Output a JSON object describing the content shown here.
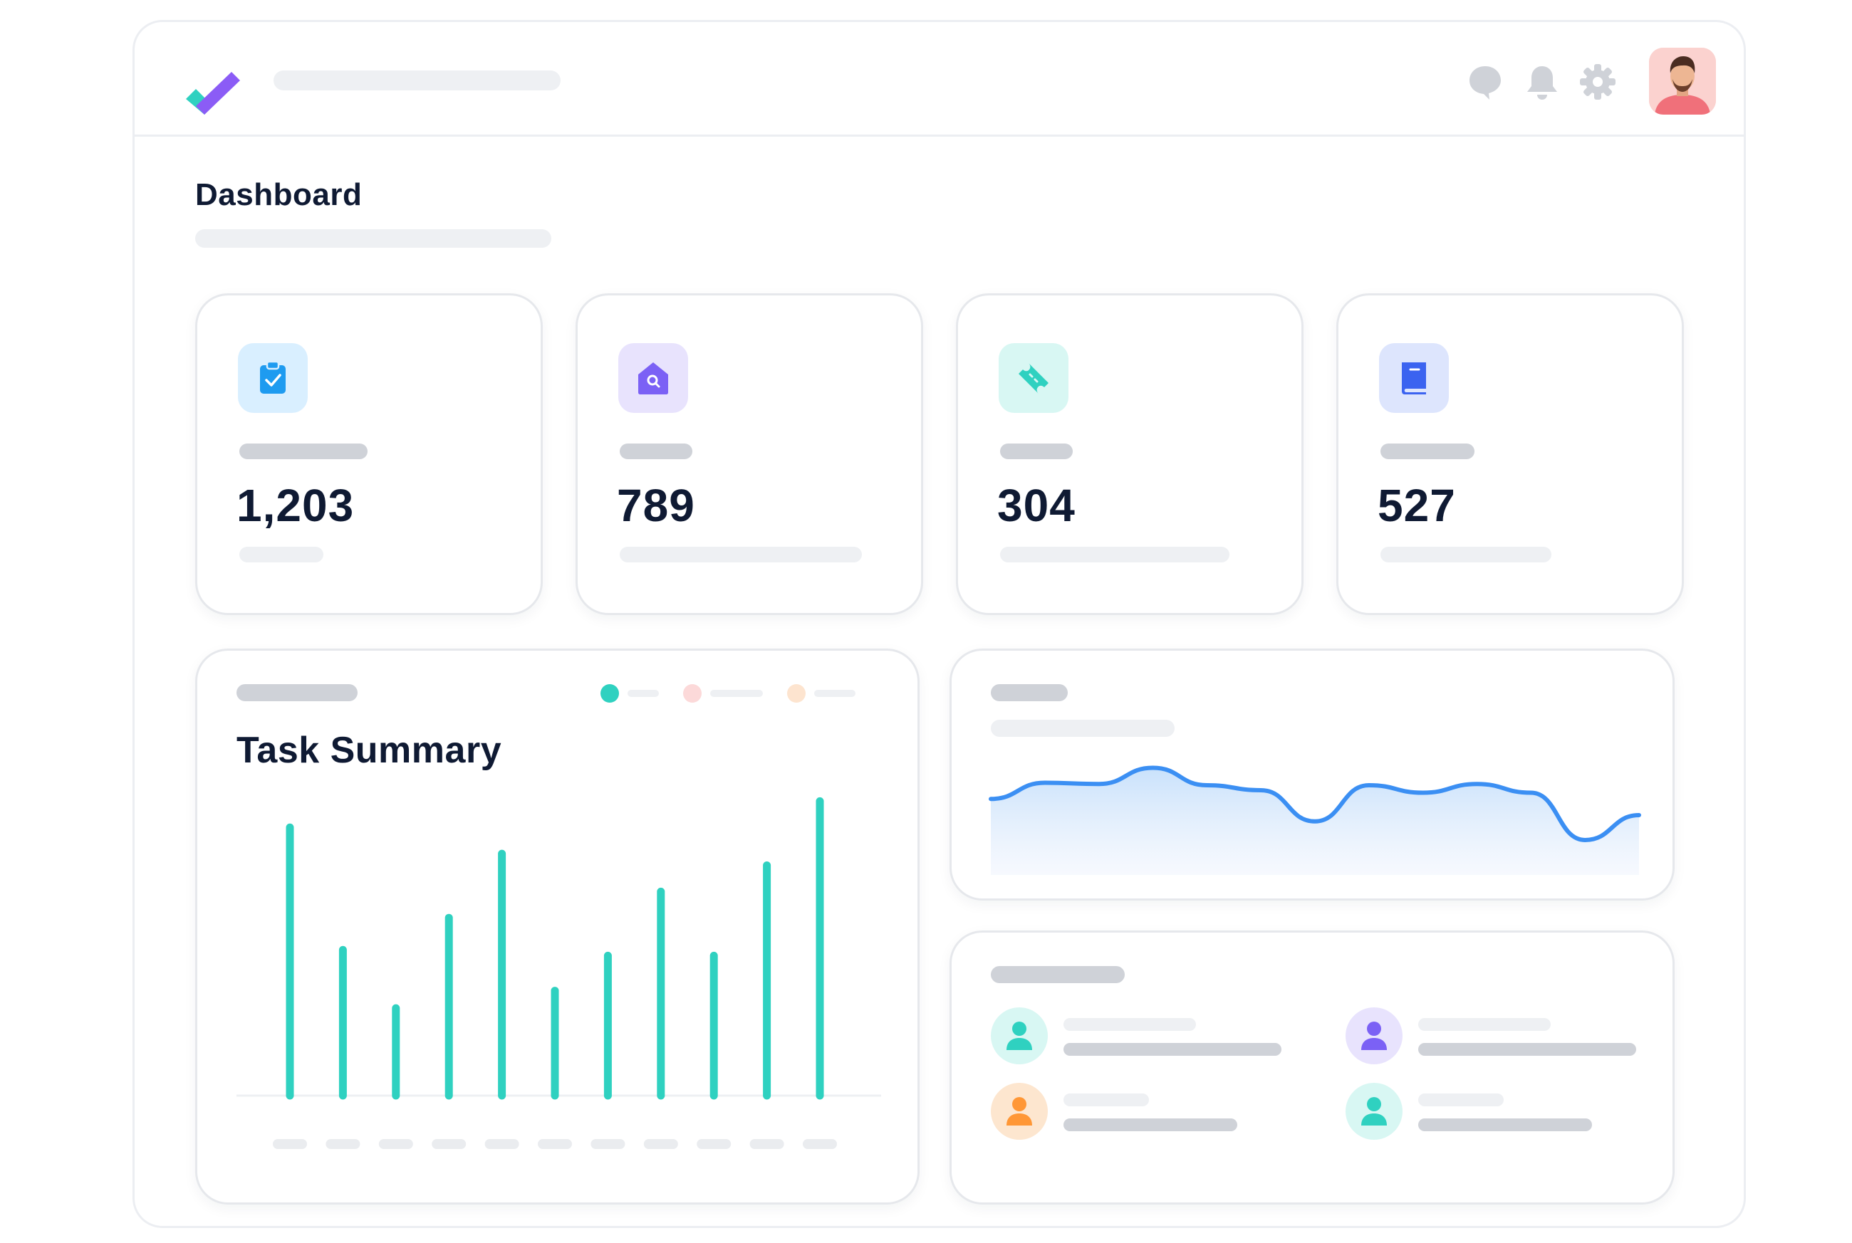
{
  "header": {
    "icons": [
      "chat-bubble-icon",
      "bell-icon",
      "gear-icon"
    ],
    "avatar": "user-avatar"
  },
  "page": {
    "title": "Dashboard"
  },
  "stats": [
    {
      "value": "1,203",
      "icon": "clipboard-check-icon",
      "accent": "#1e9bf0",
      "tint": "#d9efff"
    },
    {
      "value": "789",
      "icon": "house-search-icon",
      "accent": "#7b61f5",
      "tint": "#e8e3fd"
    },
    {
      "value": "304",
      "icon": "ticket-icon",
      "accent": "#2fd1c0",
      "tint": "#d8f7f3"
    },
    {
      "value": "527",
      "icon": "book-icon",
      "accent": "#3b63f0",
      "tint": "#dde5fd"
    }
  ],
  "task_summary": {
    "title": "Task Summary",
    "legend_colors": [
      "#2fd1c0",
      "#fcd9d9",
      "#fde4cf"
    ]
  },
  "people": [
    {
      "icon": "user-icon",
      "color": "#2fd1c0",
      "bg": "#d8f7f3"
    },
    {
      "icon": "user-icon",
      "color": "#7b61f5",
      "bg": "#e8e3fd"
    },
    {
      "icon": "user-icon",
      "color": "#ff9736",
      "bg": "#fde6cf"
    },
    {
      "icon": "user-icon",
      "color": "#2fd1c0",
      "bg": "#d8f7f3"
    }
  ],
  "chart_data": [
    {
      "type": "bar",
      "title": "Task Summary",
      "categories": [
        "",
        "",
        "",
        "",
        "",
        "",
        "",
        "",
        "",
        "",
        ""
      ],
      "values": [
        92,
        50,
        30,
        61,
        83,
        36,
        48,
        70,
        48,
        79,
        101
      ],
      "ylim": [
        0,
        105
      ],
      "grid": false,
      "color": "#2fd1c0"
    },
    {
      "type": "area",
      "x": [
        0,
        1,
        2,
        3,
        4,
        5,
        6,
        7,
        8,
        9,
        10,
        11,
        12
      ],
      "values": [
        61,
        74,
        73,
        86,
        72,
        68,
        43,
        72,
        66,
        73,
        66,
        28,
        48
      ],
      "ylim": [
        0,
        100
      ],
      "grid": false,
      "color": "#3b8ff3"
    }
  ]
}
